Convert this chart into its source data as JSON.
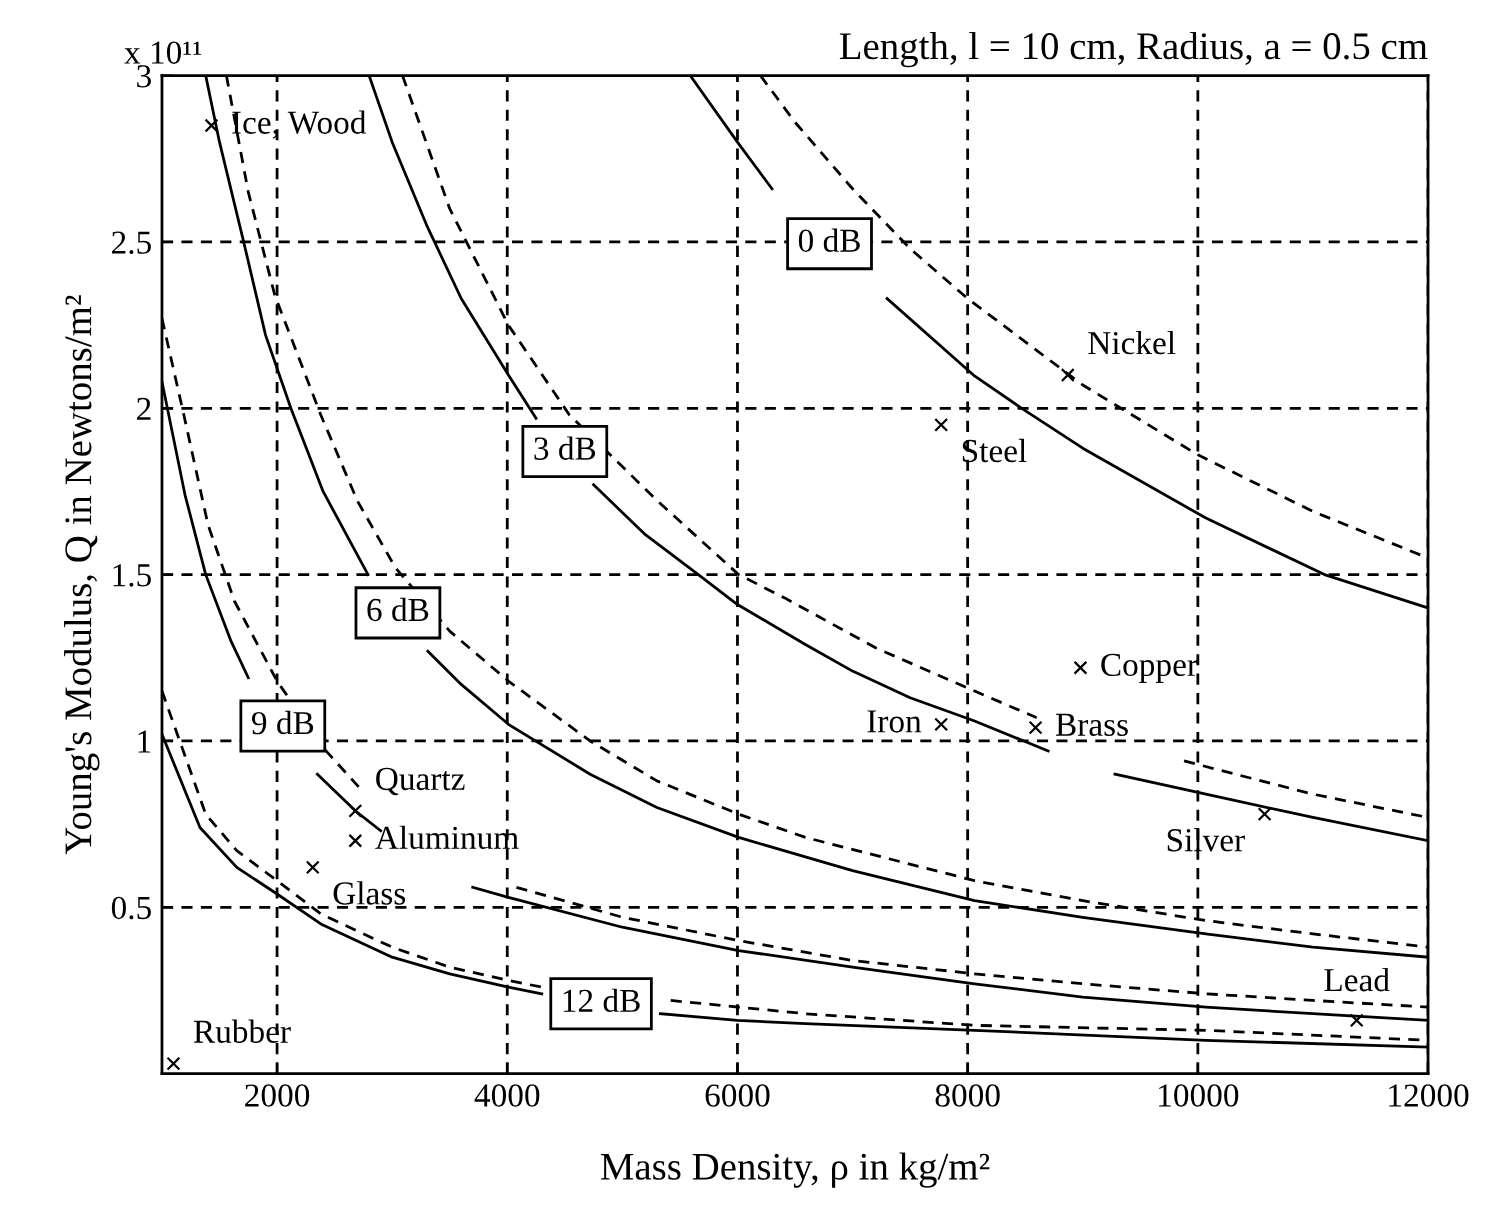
{
  "chart_data": {
    "type": "line",
    "title": "Length, l = 10 cm, Radius, a = 0.5 cm",
    "xlabel": "Mass Density, ρ in kg/m²",
    "ylabel": "Young's Modulus, Q in Newtons/m²",
    "xlim": [
      1000,
      12000
    ],
    "xticks": [
      2000,
      4000,
      6000,
      8000,
      10000,
      12000
    ],
    "ylim": [
      0,
      3
    ],
    "yticks": [
      0.5,
      1,
      1.5,
      2,
      2.5,
      3
    ],
    "grid": true,
    "legend": false,
    "series": [
      {
        "name": "0 dB",
        "color": "#000000",
        "line_style": "solid",
        "x": [
          5590,
          6000,
          6300,
          6800,
          7300,
          8050,
          8470,
          9000,
          10070,
          11100,
          12000
        ],
        "values": [
          3.0,
          2.8,
          2.66,
          null,
          2.33,
          2.1,
          2.0,
          1.88,
          1.67,
          1.5,
          1.4
        ]
      },
      {
        "color": "#000000",
        "line_style": "dashed",
        "x": [
          6200,
          6500,
          7000,
          7500,
          8000,
          9000,
          10000,
          11000,
          12000
        ],
        "values": [
          3.0,
          2.86,
          2.66,
          2.48,
          2.33,
          2.07,
          1.86,
          1.69,
          1.55
        ]
      },
      {
        "name": "3 dB",
        "color": "#000000",
        "line_style": "solid",
        "x": [
          2800,
          3000,
          3300,
          3600,
          4010,
          4250,
          4500,
          4750,
          5200,
          5660,
          6000,
          6590,
          7000,
          7500,
          8060,
          8700,
          9000,
          9280,
          10070,
          11000,
          12000
        ],
        "values": [
          3.0,
          2.8,
          2.55,
          2.33,
          2.1,
          1.97,
          null,
          1.77,
          1.62,
          1.5,
          1.41,
          1.29,
          1.21,
          1.13,
          1.06,
          0.97,
          null,
          0.9,
          0.84,
          0.77,
          0.7
        ]
      },
      {
        "color": "#000000",
        "line_style": "dashed",
        "x": [
          3090,
          3500,
          4010,
          4540,
          5310,
          6010,
          6410,
          7200,
          8060,
          8600,
          9200,
          9880,
          11000,
          12000
        ],
        "values": [
          3.0,
          2.6,
          2.25,
          1.98,
          1.72,
          1.5,
          1.43,
          1.28,
          1.15,
          1.07,
          null,
          0.94,
          0.84,
          0.77
        ]
      },
      {
        "name": "6 dB",
        "color": "#000000",
        "line_style": "solid",
        "x": [
          1380,
          1500,
          1710,
          1900,
          2120,
          2400,
          2790,
          3050,
          3310,
          3600,
          4010,
          4720,
          5300,
          6010,
          7000,
          8060,
          9000,
          10070,
          11000,
          12000
        ],
        "values": [
          3.0,
          2.8,
          2.5,
          2.22,
          2.0,
          1.75,
          1.5,
          null,
          1.27,
          1.17,
          1.05,
          0.9,
          0.8,
          0.71,
          0.61,
          0.52,
          0.47,
          0.42,
          0.38,
          0.35
        ]
      },
      {
        "color": "#000000",
        "line_style": "dashed",
        "x": [
          1560,
          1750,
          1980,
          2380,
          2700,
          3030,
          3500,
          4010,
          4720,
          5300,
          6010,
          6590,
          8060,
          9000,
          10070,
          11000,
          12000
        ],
        "values": [
          3.0,
          2.65,
          2.34,
          1.98,
          1.72,
          1.52,
          1.33,
          1.18,
          1.0,
          0.88,
          0.78,
          0.71,
          0.58,
          0.52,
          0.46,
          0.42,
          0.38
        ]
      },
      {
        "name": "9 dB",
        "color": "#000000",
        "line_style": "solid",
        "x": [
          1000,
          1200,
          1380,
          1600,
          1750,
          2050,
          2350,
          2680,
          2900,
          3300,
          3700,
          4010,
          5000,
          6010,
          7000,
          8060,
          9000,
          10070,
          11000,
          12000
        ],
        "values": [
          2.08,
          1.74,
          1.5,
          1.3,
          1.19,
          null,
          0.9,
          0.79,
          0.73,
          null,
          0.56,
          0.53,
          0.44,
          0.37,
          0.32,
          0.27,
          0.23,
          0.2,
          0.18,
          0.16
        ]
      },
      {
        "color": "#000000",
        "line_style": "dashed",
        "x": [
          1000,
          1190,
          1400,
          1630,
          2000,
          2400,
          2740,
          3400,
          4080,
          5000,
          6010,
          7000,
          8060,
          9000,
          10070,
          11000,
          12000
        ],
        "values": [
          2.27,
          1.98,
          1.65,
          1.42,
          1.18,
          0.98,
          0.85,
          null,
          0.56,
          0.47,
          0.4,
          0.34,
          0.3,
          0.27,
          0.24,
          0.22,
          0.2
        ]
      },
      {
        "name": "12 dB",
        "color": "#000000",
        "line_style": "solid",
        "x": [
          1000,
          1330,
          1650,
          2000,
          2380,
          3000,
          3500,
          4010,
          4300,
          4815,
          5330,
          6000,
          6590,
          8060,
          10070,
          12000
        ],
        "values": [
          1.02,
          0.74,
          0.62,
          0.54,
          0.45,
          0.35,
          0.3,
          0.26,
          0.24,
          null,
          0.18,
          0.16,
          0.15,
          0.13,
          0.1,
          0.08
        ]
      },
      {
        "color": "#000000",
        "line_style": "dashed",
        "x": [
          1000,
          1380,
          1650,
          2000,
          2380,
          3000,
          3500,
          4010,
          4300,
          4860,
          5420,
          6590,
          8060,
          10070,
          12000
        ],
        "values": [
          1.15,
          0.78,
          0.67,
          0.58,
          0.48,
          0.38,
          0.32,
          0.28,
          0.26,
          null,
          0.22,
          0.18,
          0.145,
          0.13,
          0.1
        ]
      },
      {
        "type": "scatter",
        "marker": "cross",
        "color": "#000000",
        "x": [
          1430,
          8870,
          7770,
          8980,
          7770,
          8590,
          10580,
          11380,
          2680,
          2680,
          2310,
          1100
        ],
        "values": [
          2.85,
          2.1,
          1.95,
          1.22,
          1.05,
          1.04,
          0.78,
          0.16,
          0.79,
          0.7,
          0.62,
          0.03
        ]
      }
    ],
    "annotations": [
      "x 10¹¹",
      {
        "text": "Ice, Wood",
        "x": 1430,
        "y": 2.85
      },
      {
        "text": "Nickel",
        "x": 8870,
        "y": 2.1
      },
      {
        "text": "Steel",
        "x": 7770,
        "y": 1.95
      },
      {
        "text": "Copper",
        "x": 8980,
        "y": 1.22
      },
      {
        "text": "Iron",
        "x": 7770,
        "y": 1.05
      },
      {
        "text": "Brass",
        "x": 8590,
        "y": 1.04
      },
      {
        "text": "Silver",
        "x": 10580,
        "y": 0.78
      },
      {
        "text": "Lead",
        "x": 11380,
        "y": 0.16
      },
      {
        "text": "Quartz",
        "x": 2680,
        "y": 0.79
      },
      {
        "text": "Aluminum",
        "x": 2680,
        "y": 0.7
      },
      {
        "text": "Glass",
        "x": 2310,
        "y": 0.62
      },
      {
        "text": "Rubber",
        "x": 1100,
        "y": 0.03
      }
    ]
  }
}
